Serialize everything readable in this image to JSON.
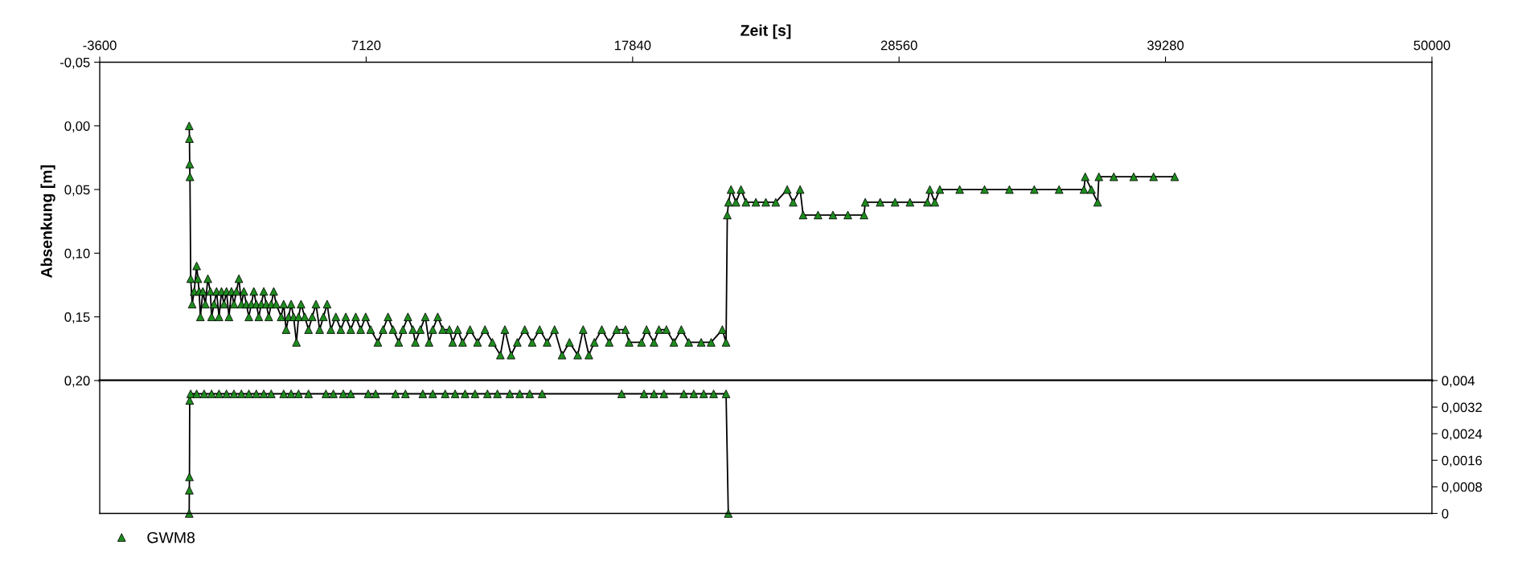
{
  "chart_data": [
    {
      "type": "line",
      "xlabel": "Zeit [s]",
      "ylabel": "Absenkung [m]",
      "xlim": [
        -3600,
        50000
      ],
      "xticks": [
        -3600,
        7120,
        17840,
        28560,
        39280,
        50000
      ],
      "ylim": [
        0.2,
        -0.05
      ],
      "yticks": [
        {
          "value": -0.05,
          "label": "-0,05"
        },
        {
          "value": 0.0,
          "label": "0,00"
        },
        {
          "value": 0.05,
          "label": "0,05"
        },
        {
          "value": 0.1,
          "label": "0,10"
        },
        {
          "value": 0.15,
          "label": "0,15"
        },
        {
          "value": 0.2,
          "label": "0,20"
        }
      ],
      "marker": "triangle",
      "grid": false,
      "legend": "bottom left",
      "series": [
        {
          "name": "GWM8",
          "color": "#1e8c1e",
          "x": [
            0,
            10,
            20,
            30,
            60,
            120,
            200,
            300,
            350,
            400,
            450,
            550,
            650,
            750,
            850,
            900,
            1000,
            1100,
            1200,
            1300,
            1400,
            1500,
            1600,
            1700,
            1800,
            1900,
            2000,
            2100,
            2200,
            2300,
            2400,
            2500,
            2600,
            2700,
            2800,
            2900,
            3000,
            3100,
            3200,
            3300,
            3400,
            3500,
            3700,
            3800,
            3900,
            4000,
            4100,
            4200,
            4315,
            4400,
            4500,
            4650,
            4800,
            4950,
            5100,
            5250,
            5400,
            5550,
            5700,
            5900,
            6100,
            6300,
            6500,
            6700,
            6900,
            7100,
            7300,
            7590,
            7800,
            8000,
            8200,
            8430,
            8600,
            8800,
            9000,
            9100,
            9300,
            9500,
            9650,
            9800,
            10000,
            10200,
            10470,
            10600,
            10800,
            11000,
            11300,
            11600,
            11900,
            12200,
            12520,
            12700,
            12950,
            13200,
            13500,
            13800,
            14100,
            14400,
            14700,
            15000,
            15300,
            15630,
            15850,
            16080,
            16300,
            16600,
            16900,
            17200,
            17550,
            17700,
            18200,
            18400,
            18700,
            18900,
            19200,
            19500,
            19800,
            20100,
            20600,
            21000,
            21450,
            21600,
            21650,
            21700,
            21800,
            22000,
            22200,
            22400,
            22800,
            23200,
            23600,
            24060,
            24300,
            24580,
            24700,
            25300,
            25900,
            26500,
            27150,
            27200,
            27800,
            28400,
            29000,
            29700,
            29800,
            30000,
            30200,
            31000,
            32000,
            33000,
            34000,
            35000,
            36000,
            36050,
            36300,
            36550,
            36600,
            37200,
            38000,
            38800,
            39650
          ],
          "values": [
            0.0,
            0.01,
            0.03,
            0.04,
            0.12,
            0.14,
            0.13,
            0.11,
            0.12,
            0.13,
            0.15,
            0.13,
            0.14,
            0.12,
            0.13,
            0.15,
            0.14,
            0.13,
            0.15,
            0.13,
            0.14,
            0.13,
            0.15,
            0.13,
            0.14,
            0.13,
            0.12,
            0.14,
            0.13,
            0.14,
            0.15,
            0.14,
            0.13,
            0.14,
            0.15,
            0.14,
            0.13,
            0.14,
            0.15,
            0.14,
            0.13,
            0.14,
            0.15,
            0.14,
            0.16,
            0.15,
            0.14,
            0.15,
            0.17,
            0.15,
            0.14,
            0.15,
            0.16,
            0.15,
            0.14,
            0.16,
            0.15,
            0.14,
            0.16,
            0.15,
            0.16,
            0.15,
            0.16,
            0.15,
            0.16,
            0.15,
            0.16,
            0.17,
            0.16,
            0.15,
            0.16,
            0.17,
            0.16,
            0.15,
            0.16,
            0.17,
            0.16,
            0.15,
            0.17,
            0.16,
            0.15,
            0.16,
            0.16,
            0.17,
            0.16,
            0.17,
            0.16,
            0.17,
            0.16,
            0.17,
            0.18,
            0.16,
            0.18,
            0.17,
            0.16,
            0.17,
            0.16,
            0.17,
            0.16,
            0.18,
            0.17,
            0.18,
            0.16,
            0.18,
            0.17,
            0.16,
            0.17,
            0.16,
            0.16,
            0.17,
            0.17,
            0.16,
            0.17,
            0.16,
            0.16,
            0.17,
            0.16,
            0.17,
            0.17,
            0.17,
            0.16,
            0.17,
            0.07,
            0.06,
            0.05,
            0.06,
            0.05,
            0.06,
            0.06,
            0.06,
            0.06,
            0.05,
            0.06,
            0.05,
            0.07,
            0.07,
            0.07,
            0.07,
            0.07,
            0.06,
            0.06,
            0.06,
            0.06,
            0.06,
            0.05,
            0.06,
            0.05,
            0.05,
            0.05,
            0.05,
            0.05,
            0.05,
            0.05,
            0.04,
            0.05,
            0.06,
            0.04,
            0.04,
            0.04,
            0.04,
            0.04
          ]
        }
      ]
    },
    {
      "type": "line",
      "xlim": [
        -3600,
        50000
      ],
      "tick_labels": "y",
      "ylim": [
        0,
        0.004
      ],
      "yticks": [
        0,
        {
          "value": 0.0008,
          "label": "0,0008"
        },
        {
          "value": 0.0016,
          "label": "0,0016"
        },
        {
          "value": 0.0024,
          "label": "0,0024"
        },
        {
          "value": 0.0032,
          "label": "0,0032"
        },
        {
          "value": 0.004,
          "label": "0,004"
        }
      ],
      "marker": "triangle",
      "grid": false,
      "series": [
        {
          "color": "#1e8c1e",
          "x": [
            0,
            5,
            10,
            20,
            60,
            300,
            600,
            900,
            1200,
            1500,
            1800,
            2100,
            2400,
            2700,
            3000,
            3300,
            3800,
            4100,
            4400,
            4800,
            5500,
            5800,
            6200,
            6500,
            7200,
            7500,
            8300,
            8700,
            9400,
            9800,
            10300,
            10700,
            11100,
            11500,
            12000,
            12400,
            12900,
            13300,
            13700,
            14200,
            17400,
            18300,
            18700,
            19100,
            19900,
            20300,
            20700,
            21100,
            21600,
            21690
          ],
          "values": [
            0,
            0.0007,
            0.0011,
            0.0034,
            0.0036,
            0.0036,
            0.0036,
            0.0036,
            0.0036,
            0.0036,
            0.0036,
            0.0036,
            0.0036,
            0.0036,
            0.0036,
            0.0036,
            0.0036,
            0.0036,
            0.0036,
            0.0036,
            0.0036,
            0.0036,
            0.0036,
            0.0036,
            0.0036,
            0.0036,
            0.0036,
            0.0036,
            0.0036,
            0.0036,
            0.0036,
            0.0036,
            0.0036,
            0.0036,
            0.0036,
            0.0036,
            0.0036,
            0.0036,
            0.0036,
            0.0036,
            0.0036,
            0.0036,
            0.0036,
            0.0036,
            0.0036,
            0.0036,
            0.0036,
            0.0036,
            0.0036,
            0
          ]
        }
      ]
    }
  ]
}
